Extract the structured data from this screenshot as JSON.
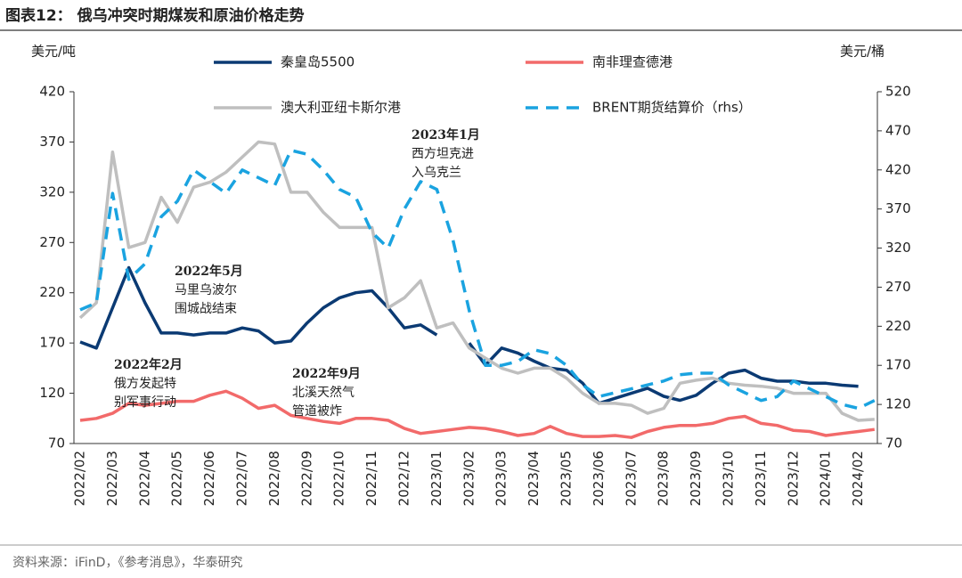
{
  "chart_data": {
    "type": "line",
    "title": "图表12：  俄乌冲突时期煤炭和原油价格走势",
    "y_label": "美元/吨",
    "y2_label": "美元/桶",
    "source": "资料来源：iFinD，《参考消息》，华泰研究",
    "categories": [
      "2022/02",
      null,
      "2022/03",
      null,
      "2022/04",
      null,
      "2022/05",
      null,
      "2022/06",
      null,
      "2022/07",
      null,
      "2022/08",
      null,
      "2022/09",
      null,
      "2022/10",
      null,
      "2022/11",
      null,
      "2022/12",
      null,
      "2023/01",
      null,
      "2023/02",
      null,
      "2023/03",
      null,
      "2023/04",
      null,
      "2023/05",
      null,
      "2023/06",
      null,
      "2023/07",
      null,
      "2023/08",
      null,
      "2023/09",
      null,
      "2023/10",
      null,
      "2023/11",
      null,
      "2023/12",
      null,
      "2024/01",
      null,
      "2024/02",
      null
    ],
    "ylim": [
      70,
      420
    ],
    "yticks": [
      70,
      120,
      170,
      220,
      270,
      320,
      370,
      420
    ],
    "y2lim": [
      70,
      520
    ],
    "y2ticks": [
      70,
      120,
      170,
      220,
      270,
      320,
      370,
      420,
      470,
      520
    ],
    "series": [
      {
        "name": "秦皇岛5500",
        "color": "#0b3a73",
        "dashed": false,
        "values": [
          171,
          165,
          205,
          245,
          210,
          180,
          180,
          178,
          180,
          180,
          185,
          182,
          170,
          172,
          190,
          205,
          215,
          220,
          222,
          205,
          185,
          188,
          178,
          null,
          170,
          148,
          165,
          160,
          152,
          145,
          143,
          130,
          110,
          115,
          120,
          125,
          117,
          113,
          118,
          130,
          140,
          143,
          135,
          132,
          132,
          130,
          130,
          128,
          127,
          null
        ]
      },
      {
        "name": "南非理查德港",
        "color": "#f26a6a",
        "dashed": false,
        "values": [
          93,
          95,
          100,
          110,
          108,
          110,
          112,
          112,
          118,
          122,
          115,
          105,
          108,
          98,
          95,
          92,
          90,
          95,
          95,
          93,
          85,
          80,
          82,
          84,
          86,
          85,
          82,
          78,
          80,
          87,
          80,
          77,
          77,
          78,
          76,
          82,
          86,
          88,
          88,
          90,
          95,
          97,
          90,
          88,
          83,
          82,
          78,
          80,
          82,
          84
        ]
      },
      {
        "name": "澳大利亚纽卡斯尔港",
        "color": "#bfbfbf",
        "dashed": false,
        "values": [
          195,
          210,
          360,
          265,
          270,
          315,
          290,
          325,
          330,
          340,
          355,
          370,
          368,
          320,
          320,
          300,
          285,
          285,
          285,
          205,
          215,
          232,
          185,
          190,
          165,
          155,
          145,
          140,
          145,
          145,
          135,
          120,
          110,
          110,
          108,
          100,
          105,
          130,
          133,
          135,
          130,
          128,
          127,
          125,
          120,
          120,
          120,
          100,
          93,
          94
        ]
      },
      {
        "name": "BRENT期货结算价（rhs）",
        "color": "#1aa3e0",
        "dashed": true,
        "axis": "y2",
        "values": [
          241,
          250,
          390,
          280,
          300,
          360,
          380,
          420,
          405,
          390,
          420,
          410,
          400,
          445,
          440,
          420,
          395,
          385,
          340,
          320,
          370,
          405,
          395,
          330,
          240,
          170,
          170,
          175,
          190,
          185,
          170,
          145,
          130,
          135,
          140,
          145,
          150,
          158,
          160,
          160,
          145,
          135,
          125,
          130,
          150,
          140,
          130,
          120,
          115,
          125
        ]
      }
    ],
    "annotations": [
      {
        "title": "2022年2月",
        "lines": [
          "俄方发起特",
          "别军事行动"
        ]
      },
      {
        "title": "2022年5月",
        "lines": [
          "马里乌波尔",
          "围城战结束"
        ]
      },
      {
        "title": "2022年9月",
        "lines": [
          "北溪天然气",
          "管道被炸"
        ]
      },
      {
        "title": "2023年1月",
        "lines": [
          "西方坦克进",
          "入乌克兰"
        ]
      }
    ]
  }
}
